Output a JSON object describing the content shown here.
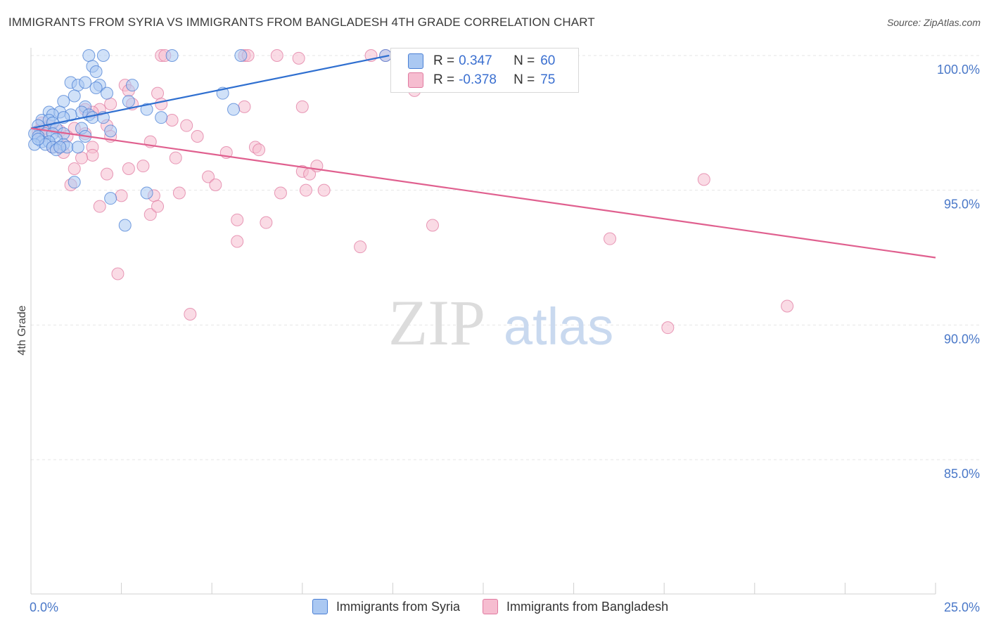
{
  "title": "IMMIGRANTS FROM SYRIA VS IMMIGRANTS FROM BANGLADESH 4TH GRADE CORRELATION CHART",
  "source": "Source: ZipAtlas.com",
  "watermark": {
    "zip": "ZIP",
    "atlas": "atlas"
  },
  "colors": {
    "syria_fill": "#aac8f2",
    "syria_stroke": "#4a7fd4",
    "syria_line": "#2f6fd0",
    "bangladesh_fill": "#f6bdd0",
    "bangladesh_stroke": "#e07aa0",
    "bangladesh_line": "#e0608f",
    "tick_text": "#4a78c8",
    "grid": "#e6e6e6"
  },
  "legend": {
    "rows": [
      {
        "r_label": "R =",
        "r_value": "0.347",
        "n_label": "N =",
        "n_value": "60"
      },
      {
        "r_label": "R =",
        "r_value": "-0.378",
        "n_label": "N =",
        "n_value": "75"
      }
    ]
  },
  "bottom_legend": [
    "Immigrants from Syria",
    "Immigrants from Bangladesh"
  ],
  "chart_data": {
    "type": "scatter",
    "title": "IMMIGRANTS FROM SYRIA VS IMMIGRANTS FROM BANGLADESH 4TH GRADE CORRELATION CHART",
    "xlabel": "",
    "ylabel": "4th Grade",
    "xlim": [
      0,
      25
    ],
    "ylim": [
      80.5,
      100.8
    ],
    "x_tick_labels": [
      "0.0%",
      "25.0%"
    ],
    "y_ticks": [
      100,
      95,
      90,
      85
    ],
    "y_tick_labels": [
      "100.0%",
      "95.0%",
      "90.0%",
      "85.0%"
    ],
    "series": [
      {
        "name": "Immigrants from Syria",
        "r": 0.347,
        "n": 60,
        "trend": {
          "x": [
            0.0,
            9.9
          ],
          "y": [
            97.3,
            100.0
          ]
        },
        "points": [
          [
            1.6,
            100
          ],
          [
            2.0,
            100
          ],
          [
            3.9,
            100
          ],
          [
            5.8,
            100
          ],
          [
            9.8,
            100
          ],
          [
            1.7,
            99.6
          ],
          [
            1.8,
            99.4
          ],
          [
            1.1,
            99.0
          ],
          [
            1.3,
            98.9
          ],
          [
            1.5,
            99.0
          ],
          [
            1.9,
            98.9
          ],
          [
            2.8,
            98.9
          ],
          [
            1.8,
            98.8
          ],
          [
            1.2,
            98.5
          ],
          [
            2.1,
            98.6
          ],
          [
            5.3,
            98.6
          ],
          [
            0.9,
            98.3
          ],
          [
            2.7,
            98.3
          ],
          [
            1.5,
            98.1
          ],
          [
            3.2,
            98.0
          ],
          [
            5.6,
            98.0
          ],
          [
            0.5,
            97.9
          ],
          [
            0.8,
            97.9
          ],
          [
            1.4,
            97.9
          ],
          [
            1.6,
            97.8
          ],
          [
            0.6,
            97.8
          ],
          [
            1.1,
            97.8
          ],
          [
            0.9,
            97.7
          ],
          [
            1.7,
            97.7
          ],
          [
            2.0,
            97.7
          ],
          [
            3.6,
            97.7
          ],
          [
            0.3,
            97.6
          ],
          [
            0.5,
            97.6
          ],
          [
            0.6,
            97.5
          ],
          [
            0.2,
            97.4
          ],
          [
            0.7,
            97.3
          ],
          [
            1.4,
            97.3
          ],
          [
            2.2,
            97.2
          ],
          [
            0.4,
            97.1
          ],
          [
            0.6,
            97.1
          ],
          [
            0.9,
            97.1
          ],
          [
            0.1,
            97.1
          ],
          [
            1.5,
            97.0
          ],
          [
            0.2,
            97.0
          ],
          [
            0.7,
            96.9
          ],
          [
            0.3,
            96.8
          ],
          [
            0.5,
            96.8
          ],
          [
            0.1,
            96.7
          ],
          [
            0.4,
            96.7
          ],
          [
            0.9,
            96.7
          ],
          [
            0.6,
            96.6
          ],
          [
            0.7,
            96.5
          ],
          [
            1.0,
            96.6
          ],
          [
            1.3,
            96.6
          ],
          [
            0.2,
            96.9
          ],
          [
            0.8,
            96.6
          ],
          [
            1.2,
            95.3
          ],
          [
            3.2,
            94.9
          ],
          [
            2.2,
            94.7
          ],
          [
            2.6,
            93.7
          ]
        ]
      },
      {
        "name": "Immigrants from Bangladesh",
        "r": -0.378,
        "n": 75,
        "trend": {
          "x": [
            0.0,
            25.0
          ],
          "y": [
            97.3,
            92.5
          ]
        },
        "points": [
          [
            3.6,
            100
          ],
          [
            3.7,
            100
          ],
          [
            5.9,
            100
          ],
          [
            6.0,
            100
          ],
          [
            6.8,
            100
          ],
          [
            7.4,
            99.9
          ],
          [
            9.4,
            100
          ],
          [
            9.8,
            100
          ],
          [
            2.6,
            98.9
          ],
          [
            2.7,
            98.7
          ],
          [
            3.5,
            98.6
          ],
          [
            10.6,
            98.7
          ],
          [
            2.2,
            98.2
          ],
          [
            2.8,
            98.2
          ],
          [
            3.6,
            98.2
          ],
          [
            5.9,
            98.1
          ],
          [
            7.5,
            98.1
          ],
          [
            1.5,
            98.0
          ],
          [
            1.9,
            98.0
          ],
          [
            1.7,
            97.9
          ],
          [
            3.9,
            97.6
          ],
          [
            2.1,
            97.4
          ],
          [
            4.3,
            97.4
          ],
          [
            0.3,
            97.5
          ],
          [
            0.5,
            97.4
          ],
          [
            1.2,
            97.3
          ],
          [
            0.8,
            97.2
          ],
          [
            0.2,
            97.2
          ],
          [
            1.5,
            97.1
          ],
          [
            1.0,
            97.0
          ],
          [
            4.6,
            97.0
          ],
          [
            2.2,
            97.0
          ],
          [
            3.3,
            96.8
          ],
          [
            0.6,
            96.6
          ],
          [
            0.8,
            96.6
          ],
          [
            1.7,
            96.6
          ],
          [
            0.9,
            96.4
          ],
          [
            5.4,
            96.4
          ],
          [
            6.2,
            96.6
          ],
          [
            6.3,
            96.5
          ],
          [
            1.7,
            96.3
          ],
          [
            1.4,
            96.2
          ],
          [
            4.0,
            96.2
          ],
          [
            1.2,
            95.8
          ],
          [
            2.7,
            95.8
          ],
          [
            3.1,
            95.9
          ],
          [
            7.5,
            95.7
          ],
          [
            7.7,
            95.6
          ],
          [
            7.9,
            95.9
          ],
          [
            2.1,
            95.6
          ],
          [
            4.9,
            95.5
          ],
          [
            1.1,
            95.2
          ],
          [
            5.1,
            95.2
          ],
          [
            18.6,
            95.4
          ],
          [
            7.6,
            95.0
          ],
          [
            8.1,
            95.0
          ],
          [
            3.4,
            94.8
          ],
          [
            6.9,
            94.9
          ],
          [
            4.1,
            94.9
          ],
          [
            2.5,
            94.8
          ],
          [
            1.9,
            94.4
          ],
          [
            3.3,
            94.1
          ],
          [
            3.5,
            94.4
          ],
          [
            5.7,
            93.9
          ],
          [
            6.5,
            93.8
          ],
          [
            11.1,
            93.7
          ],
          [
            5.7,
            93.1
          ],
          [
            9.1,
            92.9
          ],
          [
            16.0,
            93.2
          ],
          [
            2.4,
            91.9
          ],
          [
            4.4,
            90.4
          ],
          [
            20.9,
            90.7
          ],
          [
            17.6,
            89.9
          ],
          [
            0.3,
            97.0
          ],
          [
            0.4,
            97.3
          ]
        ]
      }
    ]
  }
}
